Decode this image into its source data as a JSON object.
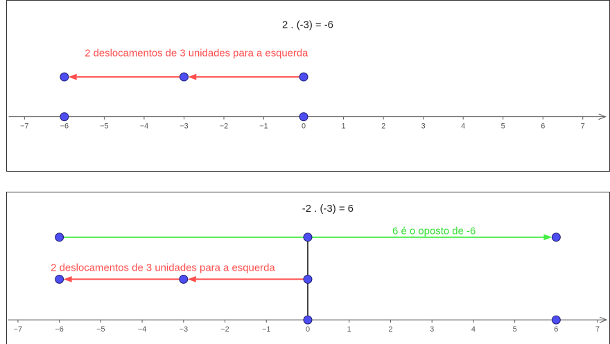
{
  "colors": {
    "axis": "#555555",
    "point_fill": "#4d4df0",
    "point_stroke": "#1a1a6e",
    "red": "#ff4d4d",
    "green": "#44ee44",
    "segment": "#444444"
  },
  "axis": {
    "xmin": -7,
    "xmax": 7,
    "tick_labels": [
      "−7",
      "−6",
      "−5",
      "−4",
      "−3",
      "−2",
      "−1",
      "0",
      "1",
      "2",
      "3",
      "4",
      "5",
      "6",
      "7"
    ]
  },
  "panel1": {
    "equation": "2 . (-3) = -6",
    "caption": "2 deslocamentos de 3 unidades para a esquerda",
    "vectors": [
      {
        "from": 0,
        "to": -3,
        "row": "upper",
        "color": "red"
      },
      {
        "from": -3,
        "to": -6,
        "row": "upper",
        "color": "red"
      }
    ],
    "points": [
      {
        "x": -6,
        "row": "upper"
      },
      {
        "x": -3,
        "row": "upper"
      },
      {
        "x": 0,
        "row": "upper"
      },
      {
        "x": -6,
        "row": "axis"
      },
      {
        "x": 0,
        "row": "axis"
      }
    ]
  },
  "panel2": {
    "equation": "-2 . (-3) = 6",
    "caption_red": "2 deslocamentos de 3 unidades para a esquerda",
    "caption_green": "6 é o oposto de -6",
    "vectors": [
      {
        "from": 0,
        "to": 6,
        "row": "top",
        "color": "green"
      },
      {
        "from": -6,
        "to": 0,
        "row": "top",
        "color": "green",
        "plain": true
      },
      {
        "from": 0,
        "to": -3,
        "row": "middle",
        "color": "red"
      },
      {
        "from": -3,
        "to": -6,
        "row": "middle",
        "color": "red"
      }
    ],
    "points": [
      {
        "x": -6,
        "row": "top"
      },
      {
        "x": 0,
        "row": "top"
      },
      {
        "x": 6,
        "row": "top"
      },
      {
        "x": -6,
        "row": "middle"
      },
      {
        "x": -3,
        "row": "middle"
      },
      {
        "x": 0,
        "row": "middle"
      },
      {
        "x": 0,
        "row": "axis"
      },
      {
        "x": 6,
        "row": "axis"
      }
    ]
  }
}
